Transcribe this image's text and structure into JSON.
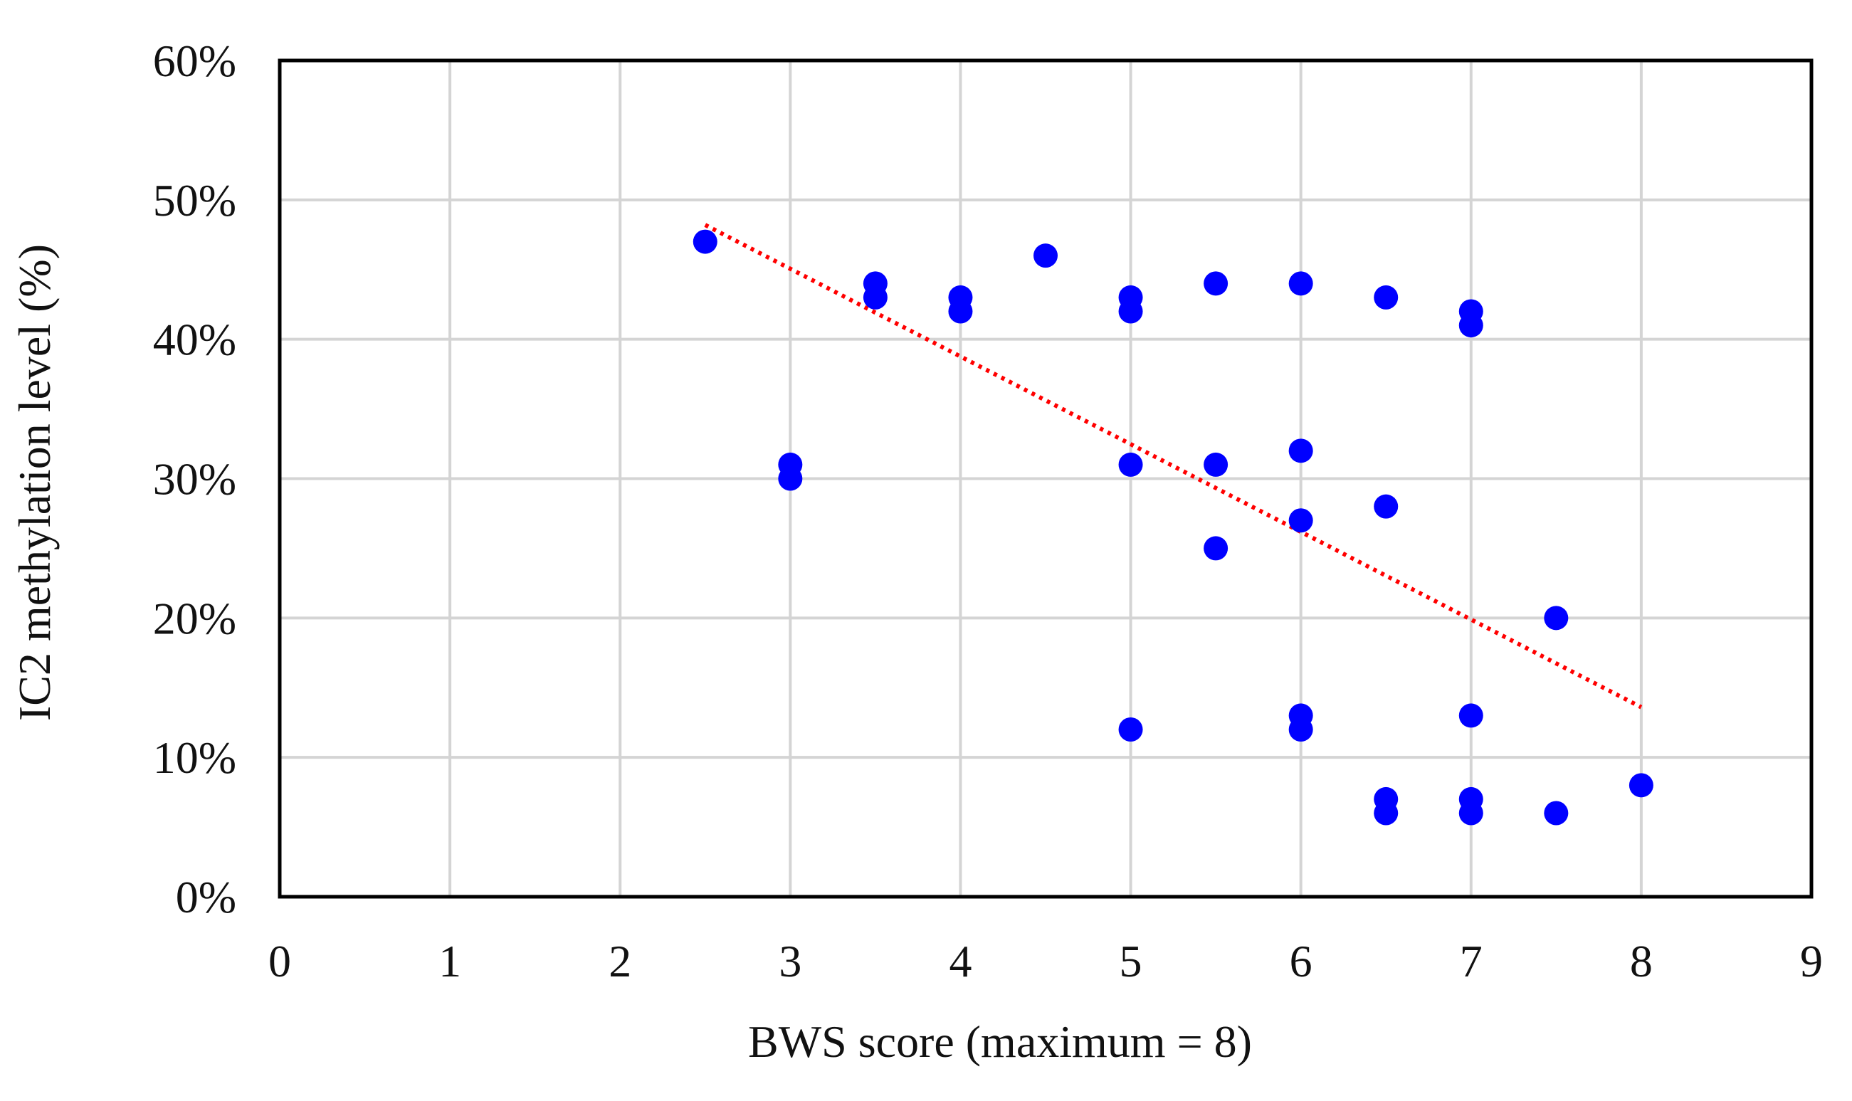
{
  "chart_data": {
    "type": "scatter",
    "title": "",
    "xlabel": "BWS score (maximum = 8)",
    "ylabel": "IC2 methylation level (%)",
    "xlim": [
      0,
      9
    ],
    "ylim": [
      0,
      60
    ],
    "x_ticks": [
      0,
      1,
      2,
      3,
      4,
      5,
      6,
      7,
      8,
      9
    ],
    "x_tick_labels": [
      "0",
      "1",
      "2",
      "3",
      "4",
      "5",
      "6",
      "7",
      "8",
      "9"
    ],
    "y_ticks": [
      0,
      10,
      20,
      30,
      40,
      50,
      60
    ],
    "y_tick_labels": [
      "0%",
      "10%",
      "20%",
      "30%",
      "40%",
      "50%",
      "60%"
    ],
    "grid": true,
    "legend": "none",
    "series": [
      {
        "color": "#0000ff",
        "points": [
          {
            "x": 2.5,
            "y": 47
          },
          {
            "x": 3,
            "y": 31
          },
          {
            "x": 3,
            "y": 30
          },
          {
            "x": 3.5,
            "y": 44
          },
          {
            "x": 3.5,
            "y": 43
          },
          {
            "x": 4,
            "y": 43
          },
          {
            "x": 4,
            "y": 42
          },
          {
            "x": 4.5,
            "y": 46
          },
          {
            "x": 5,
            "y": 43
          },
          {
            "x": 5,
            "y": 42
          },
          {
            "x": 5,
            "y": 31
          },
          {
            "x": 5,
            "y": 12
          },
          {
            "x": 5.5,
            "y": 44
          },
          {
            "x": 5.5,
            "y": 31
          },
          {
            "x": 5.5,
            "y": 25
          },
          {
            "x": 6,
            "y": 44
          },
          {
            "x": 6,
            "y": 32
          },
          {
            "x": 6,
            "y": 27
          },
          {
            "x": 6,
            "y": 13
          },
          {
            "x": 6,
            "y": 12
          },
          {
            "x": 6.5,
            "y": 43
          },
          {
            "x": 6.5,
            "y": 28
          },
          {
            "x": 6.5,
            "y": 7
          },
          {
            "x": 6.5,
            "y": 6
          },
          {
            "x": 7,
            "y": 42
          },
          {
            "x": 7,
            "y": 41
          },
          {
            "x": 7,
            "y": 13
          },
          {
            "x": 7,
            "y": 7
          },
          {
            "x": 7,
            "y": 6
          },
          {
            "x": 7.5,
            "y": 20
          },
          {
            "x": 7.5,
            "y": 6
          },
          {
            "x": 8,
            "y": 8
          }
        ]
      }
    ],
    "trendline": {
      "type": "linear",
      "style": "dotted",
      "color": "#ff0000",
      "x_start": 2.5,
      "y_start": 48.2,
      "x_end": 8,
      "y_end": 13.6
    },
    "colors": {
      "grid": "#d4d4d4",
      "frame": "#000000",
      "text": "#111111"
    }
  }
}
